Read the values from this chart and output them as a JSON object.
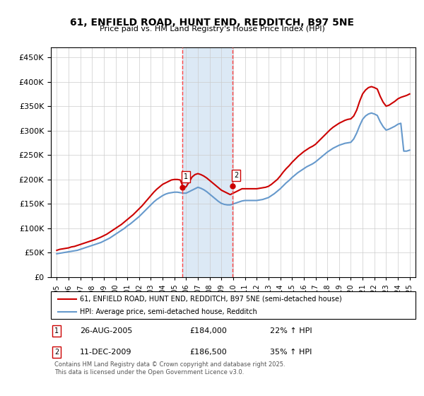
{
  "title": "61, ENFIELD ROAD, HUNT END, REDDITCH, B97 5NE",
  "subtitle": "Price paid vs. HM Land Registry's House Price Index (HPI)",
  "legend_line1": "61, ENFIELD ROAD, HUNT END, REDDITCH, B97 5NE (semi-detached house)",
  "legend_line2": "HPI: Average price, semi-detached house, Redditch",
  "annotation1_label": "1",
  "annotation1_date": "26-AUG-2005",
  "annotation1_price": "£184,000",
  "annotation1_hpi": "22% ↑ HPI",
  "annotation2_label": "2",
  "annotation2_date": "11-DEC-2009",
  "annotation2_price": "£186,500",
  "annotation2_hpi": "35% ↑ HPI",
  "footnote": "Contains HM Land Registry data © Crown copyright and database right 2025.\nThis data is licensed under the Open Government Licence v3.0.",
  "sale1_x": 2005.65,
  "sale1_y": 184000,
  "sale2_x": 2009.94,
  "sale2_y": 186500,
  "vline1_x": 2005.65,
  "vline2_x": 2009.94,
  "shade_color": "#dce9f5",
  "vline_color": "#ff4444",
  "sale_marker_color": "#cc0000",
  "red_line_color": "#cc0000",
  "blue_line_color": "#6699cc",
  "xlim": [
    1994.5,
    2025.5
  ],
  "ylim": [
    0,
    470000
  ],
  "yticks": [
    0,
    50000,
    100000,
    150000,
    200000,
    250000,
    300000,
    350000,
    400000,
    450000
  ],
  "xticks": [
    1995,
    1996,
    1997,
    1998,
    1999,
    2000,
    2001,
    2002,
    2003,
    2004,
    2005,
    2006,
    2007,
    2008,
    2009,
    2010,
    2011,
    2012,
    2013,
    2014,
    2015,
    2016,
    2017,
    2018,
    2019,
    2020,
    2021,
    2022,
    2023,
    2024,
    2025
  ],
  "red_x": [
    1995.0,
    1995.25,
    1995.5,
    1995.75,
    1996.0,
    1996.25,
    1996.5,
    1996.75,
    1997.0,
    1997.25,
    1997.5,
    1997.75,
    1998.0,
    1998.25,
    1998.5,
    1998.75,
    1999.0,
    1999.25,
    1999.5,
    1999.75,
    2000.0,
    2000.25,
    2000.5,
    2000.75,
    2001.0,
    2001.25,
    2001.5,
    2001.75,
    2002.0,
    2002.25,
    2002.5,
    2002.75,
    2003.0,
    2003.25,
    2003.5,
    2003.75,
    2004.0,
    2004.25,
    2004.5,
    2004.75,
    2005.0,
    2005.25,
    2005.5,
    2005.75,
    2006.0,
    2006.25,
    2006.5,
    2006.75,
    2007.0,
    2007.25,
    2007.5,
    2007.75,
    2008.0,
    2008.25,
    2008.5,
    2008.75,
    2009.0,
    2009.25,
    2009.5,
    2009.75,
    2010.0,
    2010.25,
    2010.5,
    2010.75,
    2011.0,
    2011.25,
    2011.5,
    2011.75,
    2012.0,
    2012.25,
    2012.5,
    2012.75,
    2013.0,
    2013.25,
    2013.5,
    2013.75,
    2014.0,
    2014.25,
    2014.5,
    2014.75,
    2015.0,
    2015.25,
    2015.5,
    2015.75,
    2016.0,
    2016.25,
    2016.5,
    2016.75,
    2017.0,
    2017.25,
    2017.5,
    2017.75,
    2018.0,
    2018.25,
    2018.5,
    2018.75,
    2019.0,
    2019.25,
    2019.5,
    2019.75,
    2020.0,
    2020.25,
    2020.5,
    2020.75,
    2021.0,
    2021.25,
    2021.5,
    2021.75,
    2022.0,
    2022.25,
    2022.5,
    2022.75,
    2023.0,
    2023.25,
    2023.5,
    2023.75,
    2024.0,
    2024.25,
    2024.5,
    2024.75,
    2025.0
  ],
  "red_y": [
    55000,
    57000,
    58000,
    59000,
    60000,
    62000,
    63000,
    65000,
    67000,
    69000,
    71000,
    73000,
    75000,
    77000,
    79500,
    82000,
    85000,
    88000,
    92000,
    96000,
    100000,
    104000,
    108000,
    113000,
    118000,
    123000,
    128000,
    134000,
    140000,
    146000,
    153000,
    160000,
    167000,
    174000,
    180000,
    185000,
    190000,
    193000,
    196000,
    199000,
    200000,
    200000,
    199000,
    184000,
    185000,
    195000,
    205000,
    210000,
    212000,
    210000,
    207000,
    203000,
    198000,
    193000,
    188000,
    183000,
    178000,
    175000,
    172000,
    169000,
    172000,
    175000,
    178000,
    181000,
    181000,
    181000,
    181000,
    181000,
    181000,
    182000,
    183000,
    184000,
    186000,
    190000,
    195000,
    200000,
    207000,
    215000,
    222000,
    228000,
    235000,
    241000,
    247000,
    252000,
    257000,
    261000,
    265000,
    268000,
    272000,
    278000,
    284000,
    290000,
    296000,
    302000,
    307000,
    311000,
    315000,
    318000,
    321000,
    323000,
    324000,
    330000,
    342000,
    360000,
    375000,
    383000,
    388000,
    390000,
    388000,
    385000,
    370000,
    358000,
    350000,
    352000,
    356000,
    360000,
    365000,
    368000,
    370000,
    372000,
    375000
  ],
  "blue_x": [
    1995.0,
    1995.25,
    1995.5,
    1995.75,
    1996.0,
    1996.25,
    1996.5,
    1996.75,
    1997.0,
    1997.25,
    1997.5,
    1997.75,
    1998.0,
    1998.25,
    1998.5,
    1998.75,
    1999.0,
    1999.25,
    1999.5,
    1999.75,
    2000.0,
    2000.25,
    2000.5,
    2000.75,
    2001.0,
    2001.25,
    2001.5,
    2001.75,
    2002.0,
    2002.25,
    2002.5,
    2002.75,
    2003.0,
    2003.25,
    2003.5,
    2003.75,
    2004.0,
    2004.25,
    2004.5,
    2004.75,
    2005.0,
    2005.25,
    2005.5,
    2005.75,
    2006.0,
    2006.25,
    2006.5,
    2006.75,
    2007.0,
    2007.25,
    2007.5,
    2007.75,
    2008.0,
    2008.25,
    2008.5,
    2008.75,
    2009.0,
    2009.25,
    2009.5,
    2009.75,
    2010.0,
    2010.25,
    2010.5,
    2010.75,
    2011.0,
    2011.25,
    2011.5,
    2011.75,
    2012.0,
    2012.25,
    2012.5,
    2012.75,
    2013.0,
    2013.25,
    2013.5,
    2013.75,
    2014.0,
    2014.25,
    2014.5,
    2014.75,
    2015.0,
    2015.25,
    2015.5,
    2015.75,
    2016.0,
    2016.25,
    2016.5,
    2016.75,
    2017.0,
    2017.25,
    2017.5,
    2017.75,
    2018.0,
    2018.25,
    2018.5,
    2018.75,
    2019.0,
    2019.25,
    2019.5,
    2019.75,
    2020.0,
    2020.25,
    2020.5,
    2020.75,
    2021.0,
    2021.25,
    2021.5,
    2021.75,
    2022.0,
    2022.25,
    2022.5,
    2022.75,
    2023.0,
    2023.25,
    2023.5,
    2023.75,
    2024.0,
    2024.25,
    2024.5,
    2024.75,
    2025.0
  ],
  "blue_y": [
    48000,
    49000,
    50000,
    51000,
    52000,
    53000,
    54000,
    55000,
    57000,
    59000,
    61000,
    63000,
    65000,
    67000,
    69000,
    71000,
    74000,
    77000,
    80000,
    84000,
    88000,
    92000,
    96000,
    100000,
    105000,
    109000,
    114000,
    119000,
    124000,
    130000,
    136000,
    142000,
    148000,
    154000,
    159000,
    163000,
    167000,
    170000,
    172000,
    173000,
    174000,
    174000,
    173000,
    172000,
    172000,
    175000,
    178000,
    181000,
    184000,
    182000,
    179000,
    175000,
    170000,
    165000,
    160000,
    155000,
    151000,
    149000,
    148000,
    148000,
    150000,
    152000,
    154000,
    156000,
    157000,
    157000,
    157000,
    157000,
    157000,
    158000,
    159000,
    161000,
    163000,
    167000,
    171000,
    176000,
    181000,
    187000,
    193000,
    198000,
    204000,
    209000,
    214000,
    218000,
    222000,
    226000,
    229000,
    232000,
    236000,
    241000,
    246000,
    251000,
    256000,
    260000,
    264000,
    267000,
    270000,
    272000,
    274000,
    275000,
    276000,
    283000,
    295000,
    310000,
    323000,
    330000,
    334000,
    336000,
    334000,
    331000,
    318000,
    308000,
    301000,
    303000,
    306000,
    309000,
    313000,
    315000,
    258000,
    258000,
    260000
  ]
}
